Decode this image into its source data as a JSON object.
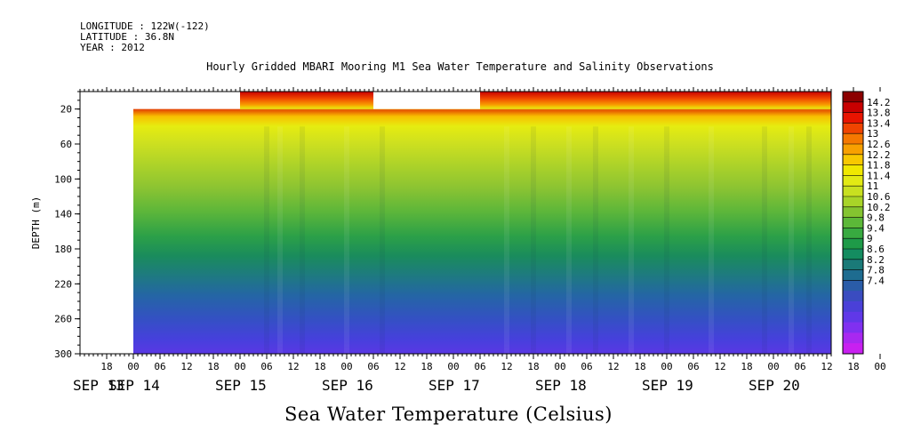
{
  "header": {
    "longitude": "LONGITUDE : 122W(-122)",
    "latitude": "LATITUDE : 36.8N",
    "year": "YEAR : 2012"
  },
  "title": "Hourly Gridded MBARI Mooring M1 Sea Water Temperature and Salinity Observations",
  "bottom_title": "Sea Water Temperature (Celsius)",
  "chart_data": {
    "type": "heatmap",
    "title": "Hourly Gridded MBARI Mooring M1 Sea Water Temperature and Salinity Observations",
    "xlabel": "",
    "ylabel": "DEPTH (m)",
    "colorbar_label": "Sea Water Temperature (Celsius)",
    "x_range_hours": [
      -12,
      157
    ],
    "y_range": [
      300,
      0
    ],
    "y_ticks": [
      20,
      60,
      100,
      140,
      180,
      220,
      260,
      300
    ],
    "x_hour_labels": [
      "18",
      "00",
      "06",
      "12",
      "18",
      "00",
      "06",
      "12",
      "18",
      "00",
      "06",
      "12",
      "18",
      "00",
      "06",
      "12",
      "18",
      "00",
      "06",
      "12",
      "18",
      "00",
      "06",
      "12",
      "18",
      "00",
      "06",
      "12",
      "18",
      "00",
      "06",
      "12"
    ],
    "x_day_labels": [
      "SEP 13",
      "SEP 14",
      "SEP 15",
      "SEP 16",
      "SEP 17",
      "SEP 18",
      "SEP 19",
      "SEP 20"
    ],
    "colorbar_levels": [
      "14.2",
      "13.8",
      "13.4",
      "13",
      "12.6",
      "12.2",
      "11.8",
      "11.4",
      "11",
      "10.6",
      "10.2",
      "9.8",
      "9.4",
      "9",
      "8.6",
      "8.2",
      "7.8",
      "7.4"
    ],
    "colorbar_colors": [
      "#8c0000",
      "#c80000",
      "#e81400",
      "#f04400",
      "#f57800",
      "#f8a000",
      "#f8c800",
      "#f0e800",
      "#e2ea14",
      "#c8e020",
      "#a8d428",
      "#84c430",
      "#5cb838",
      "#38aa40",
      "#1e9a48",
      "#148c60",
      "#1a7a78",
      "#1e6c90",
      "#2a5ca8",
      "#3a4cc0",
      "#4a40d8",
      "#6038e8",
      "#8030f0",
      "#a828f0",
      "#c820f0"
    ],
    "data_gaps": [
      {
        "from_day": "SEP 13",
        "to_day": "SEP 15 00",
        "depth_from": 0,
        "depth_to": 20
      },
      {
        "from_day": "SEP 15 06",
        "to_day": "SEP 17 06",
        "depth_from": 0,
        "depth_to": 20
      }
    ],
    "surface_max_c": 14.2,
    "bottom_min_c": 7.4
  }
}
